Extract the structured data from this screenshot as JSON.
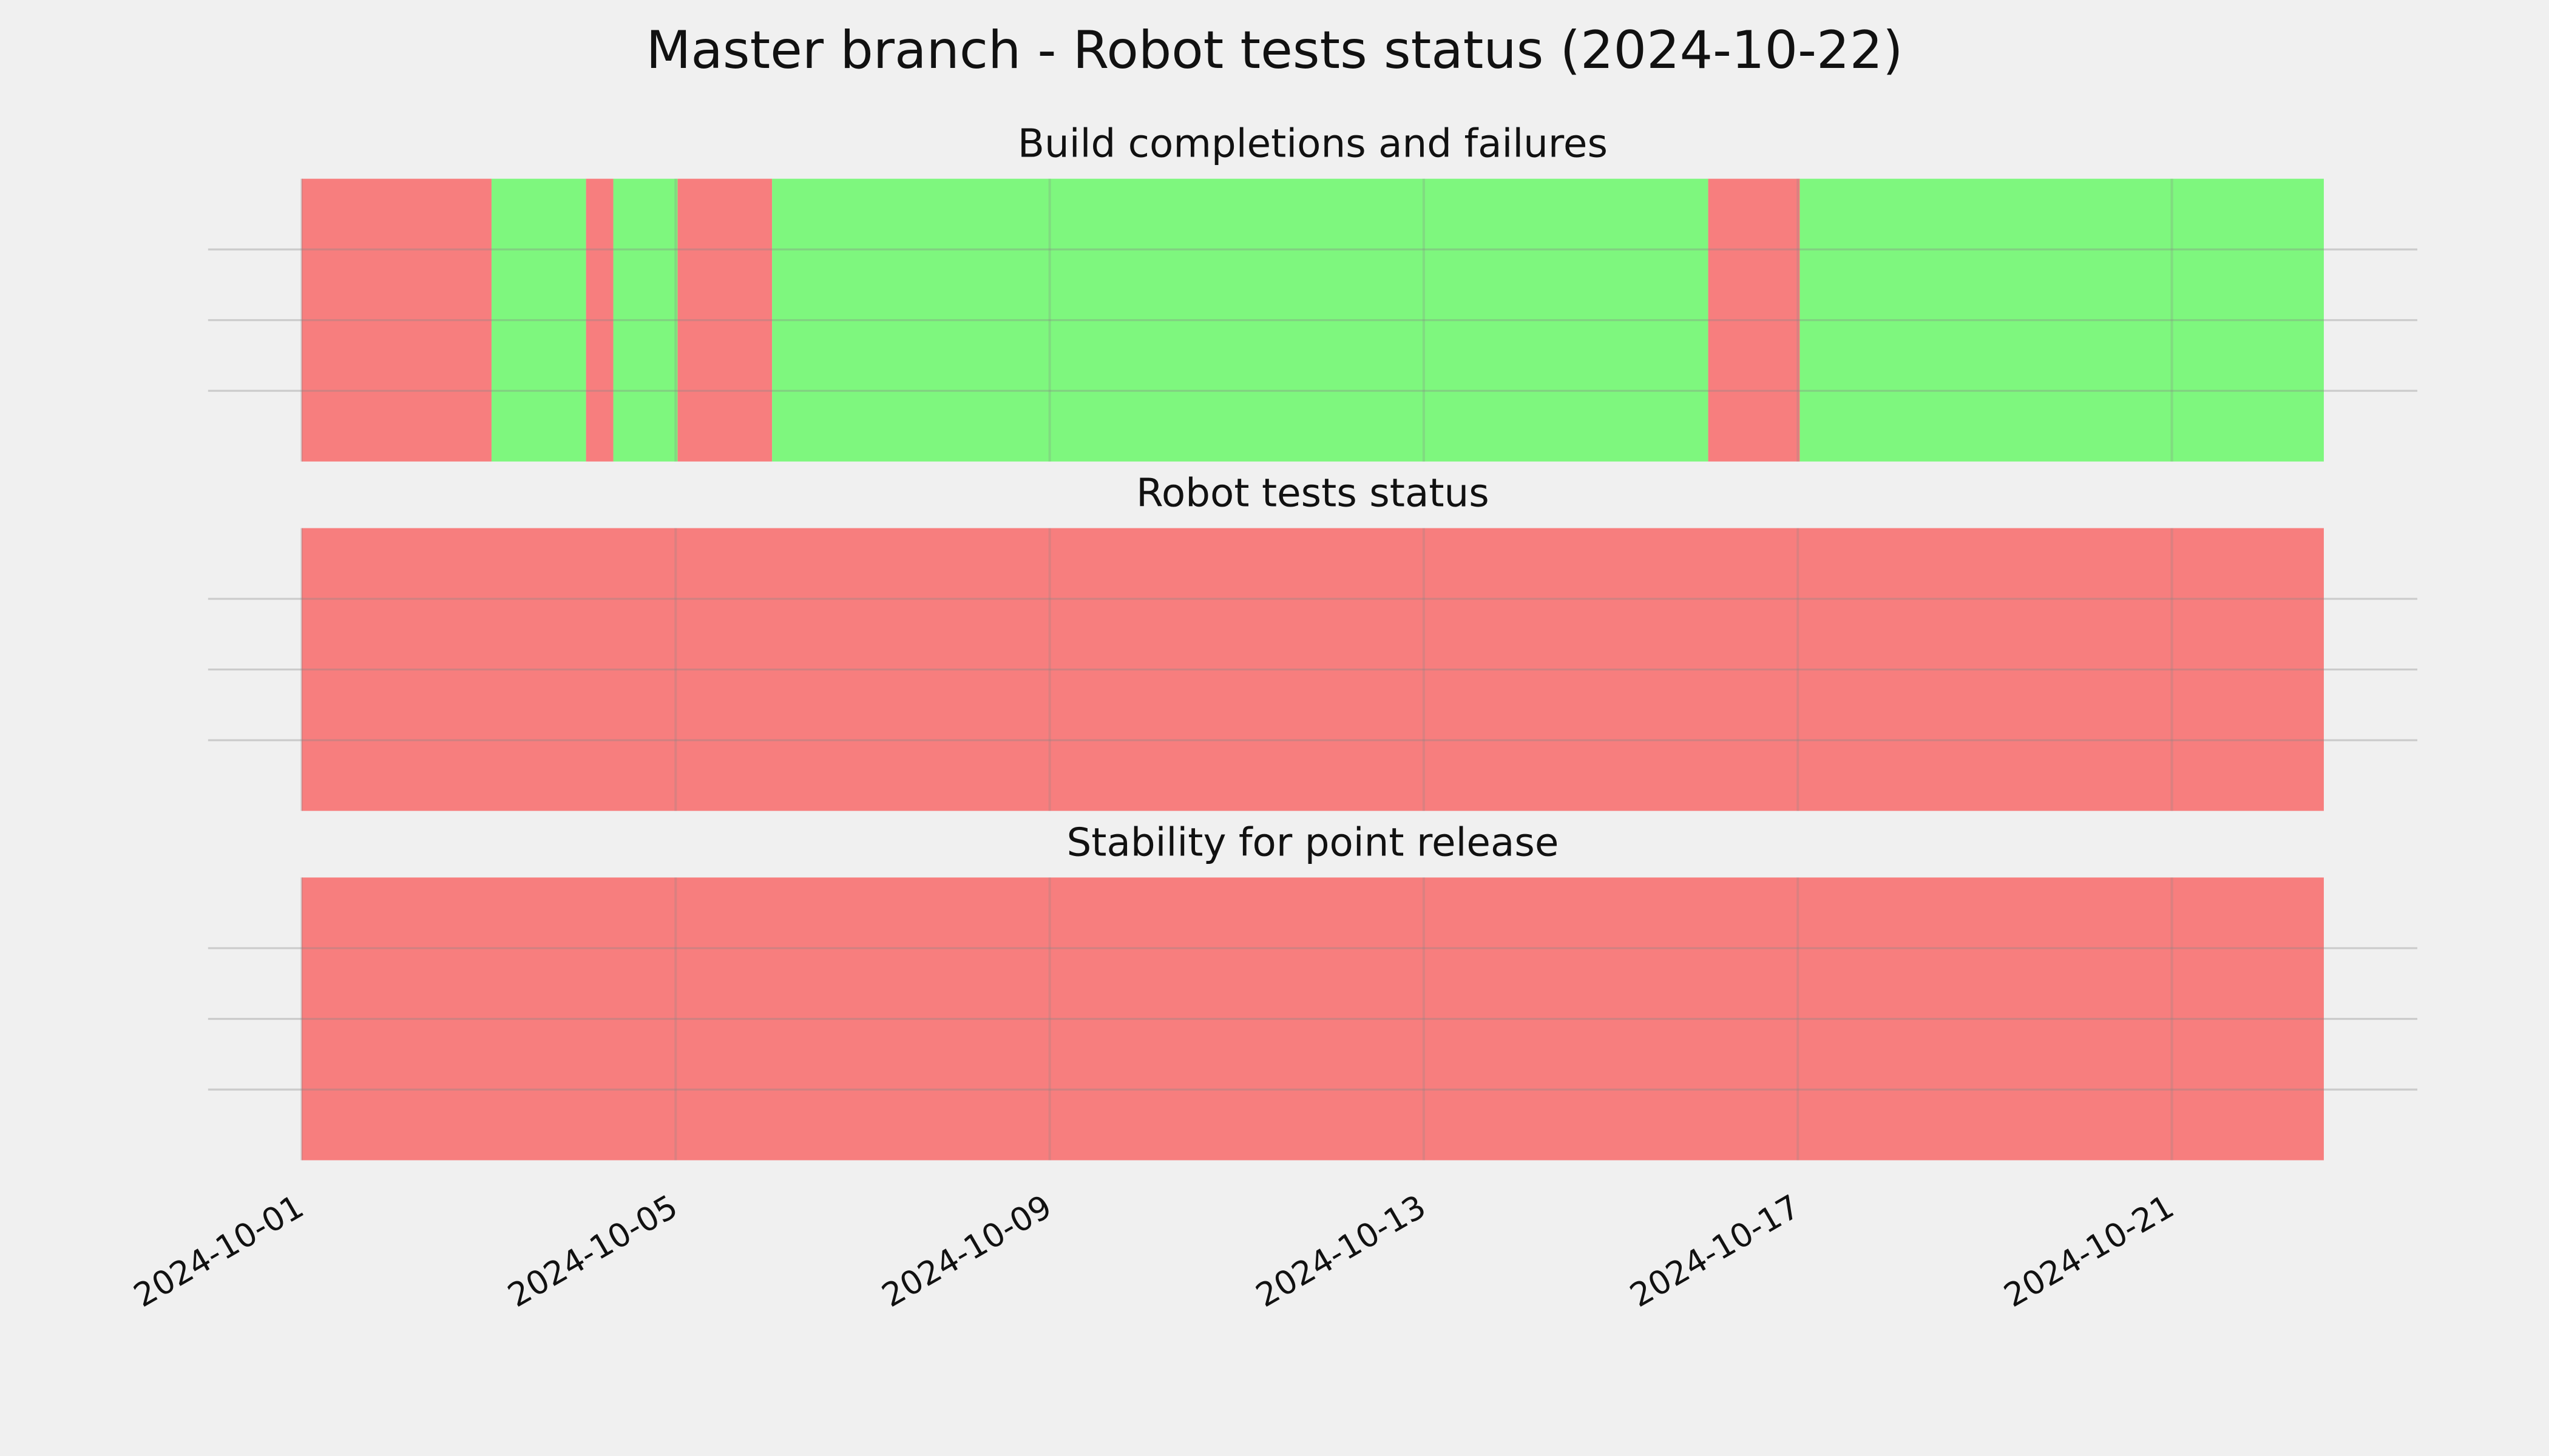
{
  "title": "Master branch - Robot tests status (2024-10-22)",
  "chart_data": [
    {
      "type": "timeline",
      "title": "Build completions and failures",
      "spans": {
        "start": [
          "2024-10-01T00:00",
          "2024-10-03T00:45",
          "2024-10-04T01:00",
          "2024-10-04T08:00",
          "2024-10-05T00:30",
          "2024-10-06T00:45",
          "2024-10-16T01:00",
          "2024-10-17T00:30"
        ],
        "end": [
          "2024-10-03T00:45",
          "2024-10-04T01:00",
          "2024-10-04T08:00",
          "2024-10-05T00:30",
          "2024-10-06T00:45",
          "2024-10-16T01:00",
          "2024-10-17T00:30",
          "2024-10-22T15:00"
        ],
        "color": [
          "#f77777",
          "#77f777",
          "#f77777",
          "#77f777",
          "#f77777",
          "#77f777",
          "#f77777",
          "#77f777"
        ]
      },
      "xlim": [
        "2024-09-30T00:00",
        "2024-10-23T15:00"
      ],
      "xticks": [
        "2024-10-01",
        "2024-10-05",
        "2024-10-09",
        "2024-10-13",
        "2024-10-17",
        "2024-10-21"
      ],
      "xtick_labels": false,
      "ylim": [
        0,
        1
      ],
      "yticks": [
        0.25,
        0.5,
        0.75
      ],
      "ytick_labels": false,
      "grid": true
    },
    {
      "type": "timeline",
      "title": "Robot tests status",
      "spans": {
        "start": [
          "2024-10-01T00:00"
        ],
        "end": [
          "2024-10-22T15:00"
        ],
        "color": [
          "#f77777"
        ]
      },
      "xlim": [
        "2024-09-30T00:00",
        "2024-10-23T15:00"
      ],
      "xticks": [
        "2024-10-01",
        "2024-10-05",
        "2024-10-09",
        "2024-10-13",
        "2024-10-17",
        "2024-10-21"
      ],
      "xtick_labels": false,
      "ylim": [
        0,
        1
      ],
      "yticks": [
        0.25,
        0.5,
        0.75
      ],
      "ytick_labels": false,
      "grid": true
    },
    {
      "type": "timeline",
      "title": "Stability for point release",
      "spans": {
        "start": [
          "2024-10-01T00:00"
        ],
        "end": [
          "2024-10-22T15:00"
        ],
        "color": [
          "#f77777"
        ]
      },
      "xlim": [
        "2024-09-30T00:00",
        "2024-10-23T15:00"
      ],
      "xticks": [
        "2024-10-01",
        "2024-10-05",
        "2024-10-09",
        "2024-10-13",
        "2024-10-17",
        "2024-10-21"
      ],
      "xtick_labels": true,
      "ylim": [
        0,
        1
      ],
      "yticks": [
        0.25,
        0.5,
        0.75
      ],
      "ytick_labels": false,
      "grid": true
    }
  ]
}
